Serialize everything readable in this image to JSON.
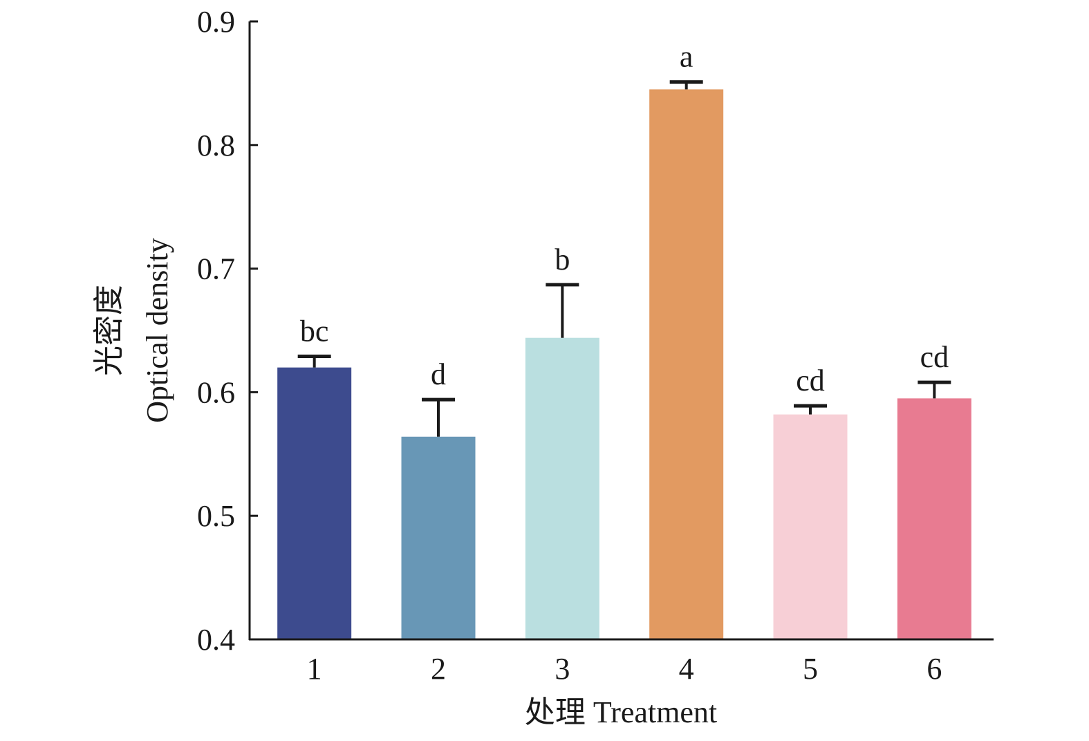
{
  "chart_data": {
    "type": "bar",
    "title": "",
    "xlabel": "处理 Treatment",
    "ylabel_cn": "光密度",
    "ylabel_en": "Optical density",
    "categories": [
      "1",
      "2",
      "3",
      "4",
      "5",
      "6"
    ],
    "values": [
      0.62,
      0.564,
      0.644,
      0.845,
      0.582,
      0.595
    ],
    "error_upper": [
      0.009,
      0.03,
      0.043,
      0.006,
      0.007,
      0.013
    ],
    "significance_labels": [
      "bc",
      "d",
      "b",
      "a",
      "cd",
      "cd"
    ],
    "colors": [
      "#3d4b8e",
      "#6897b6",
      "#badfe0",
      "#e29a61",
      "#f7cfd6",
      "#e87b91"
    ],
    "ylim": [
      0.4,
      0.9
    ],
    "yticks": [
      "0.4",
      "0.5",
      "0.6",
      "0.7",
      "0.8",
      "0.9"
    ],
    "grid": false
  }
}
